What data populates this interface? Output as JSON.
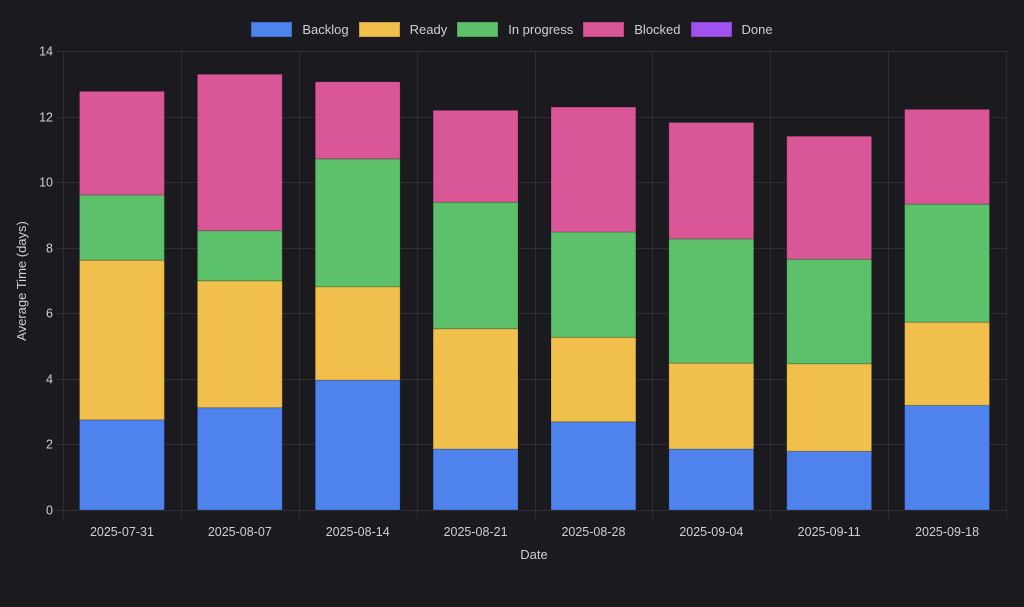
{
  "chart_data": {
    "type": "bar",
    "stacked": true,
    "title": "",
    "xlabel": "Date",
    "ylabel": "Average Time (days)",
    "ylim": [
      0,
      14
    ],
    "yticks": [
      "0",
      "2",
      "4",
      "6",
      "8",
      "10",
      "12",
      "14"
    ],
    "grid": true,
    "legend_position": "top",
    "categories": [
      "2025-07-31",
      "2025-08-07",
      "2025-08-14",
      "2025-08-21",
      "2025-08-28",
      "2025-09-04",
      "2025-09-11",
      "2025-09-18"
    ],
    "series": [
      {
        "name": "Backlog",
        "color": "#4e82ec",
        "values": [
          2.75,
          3.12,
          3.96,
          1.86,
          2.69,
          1.86,
          1.79,
          3.19
        ]
      },
      {
        "name": "Ready",
        "color": "#f0bf4c",
        "values": [
          4.87,
          3.87,
          2.85,
          3.67,
          2.58,
          2.62,
          2.67,
          2.54
        ]
      },
      {
        "name": "In progress",
        "color": "#5dc06a",
        "values": [
          1.99,
          1.53,
          3.9,
          3.86,
          3.21,
          3.79,
          3.19,
          3.6
        ]
      },
      {
        "name": "Blocked",
        "color": "#d95797",
        "values": [
          3.16,
          4.77,
          2.35,
          2.8,
          3.81,
          3.55,
          3.75,
          2.89
        ]
      },
      {
        "name": "Done",
        "color": "#a052ef",
        "values": [
          0,
          0,
          0,
          0,
          0,
          0,
          0,
          0
        ]
      }
    ]
  },
  "colors": {
    "background": "#1b1a1f",
    "grid": "#2e2d33",
    "text": "#cfcfd4"
  }
}
